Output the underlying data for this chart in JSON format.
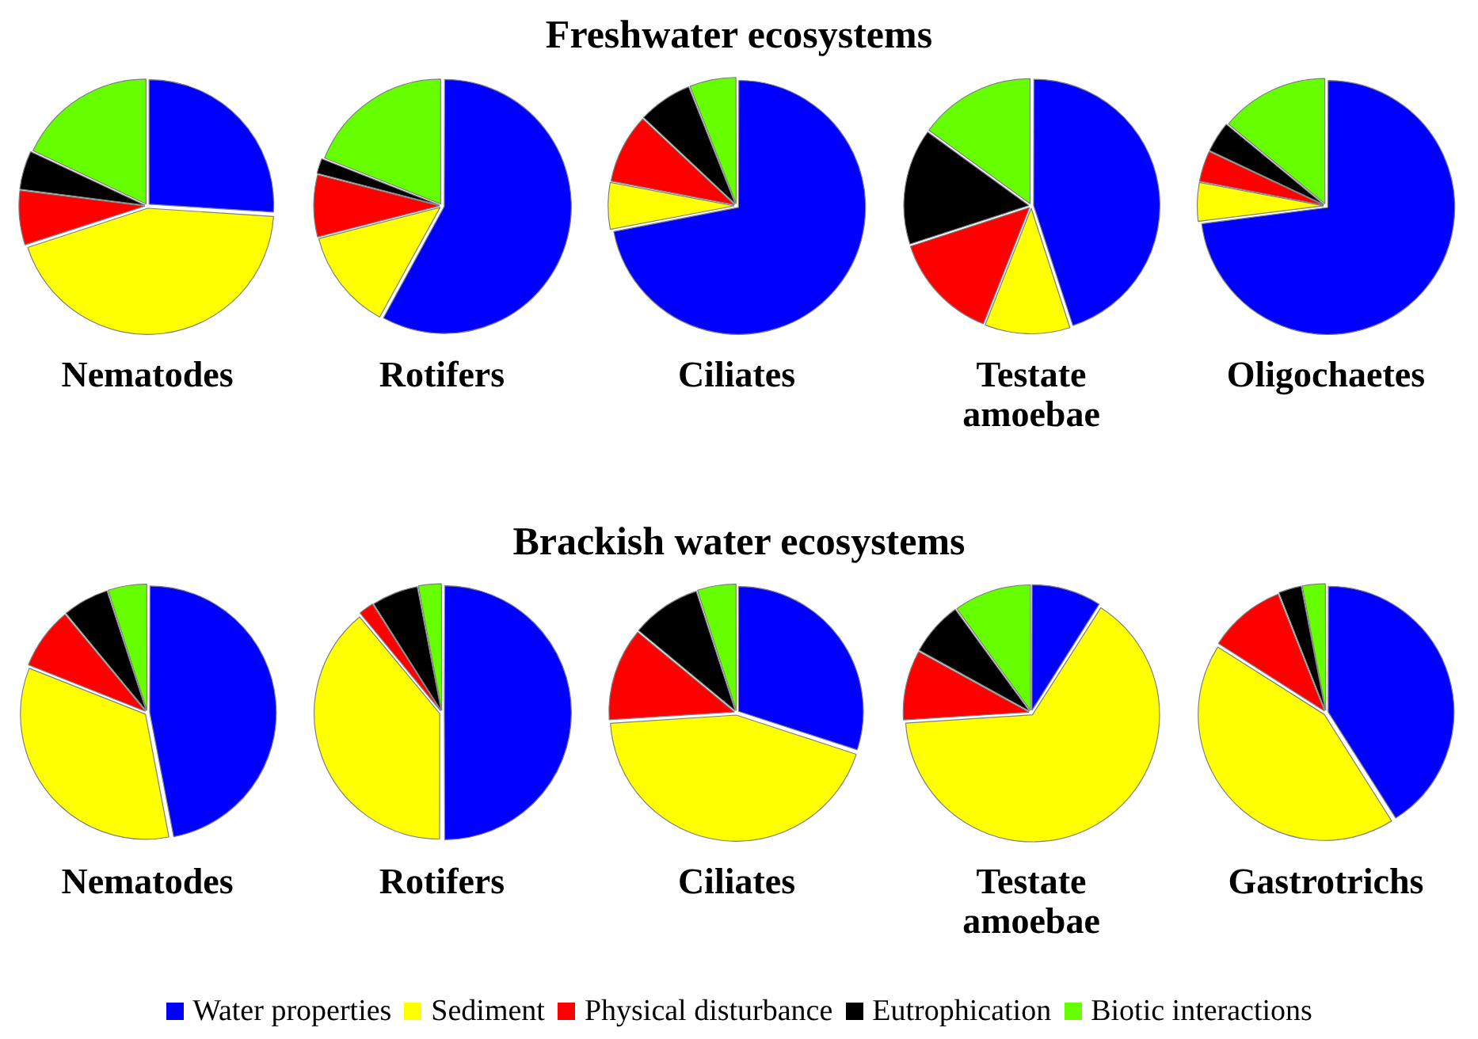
{
  "chart_data": [
    {
      "type": "pie",
      "annotations": [
        "Freshwater ecosystems"
      ],
      "title": "Nematodes",
      "legend": "bottom",
      "categories": [
        "Water properties",
        "Sediment",
        "Physical disturbance",
        "Eutrophication",
        "Biotic interactions"
      ],
      "values": [
        26,
        44,
        7,
        5,
        18
      ],
      "colors": [
        "#0000ff",
        "#ffff00",
        "#ff0000",
        "#000000",
        "#66ff00"
      ]
    },
    {
      "type": "pie",
      "title": "Rotifers",
      "categories": [
        null,
        null,
        null,
        null,
        null
      ],
      "values": [
        58,
        13,
        8,
        2,
        19
      ],
      "colors": [
        "#0000ff",
        "#ffff00",
        "#ff0000",
        "#000000",
        "#66ff00"
      ]
    },
    {
      "type": "pie",
      "title": "Ciliates",
      "categories": [
        null,
        null,
        null,
        null,
        null
      ],
      "values": [
        72,
        6,
        9,
        7,
        6
      ],
      "colors": [
        "#0000ff",
        "#ffff00",
        "#ff0000",
        "#000000",
        "#66ff00"
      ]
    },
    {
      "type": "pie",
      "title": "Testate amoebae",
      "categories": [
        null,
        null,
        null,
        null,
        null
      ],
      "values": [
        45,
        11,
        14,
        15,
        15
      ],
      "colors": [
        "#0000ff",
        "#ffff00",
        "#ff0000",
        "#000000",
        "#66ff00"
      ]
    },
    {
      "type": "pie",
      "title": "Oligochaetes",
      "categories": [
        null,
        null,
        null,
        null,
        null
      ],
      "values": [
        73,
        5,
        4,
        4,
        14
      ],
      "colors": [
        "#0000ff",
        "#ffff00",
        "#ff0000",
        "#000000",
        "#66ff00"
      ]
    },
    {
      "type": "pie",
      "annotations": [
        "Brackish water ecosystems"
      ],
      "title": "Nematodes",
      "categories": [
        null,
        null,
        null,
        null,
        null
      ],
      "values": [
        47,
        34,
        8,
        6,
        5
      ],
      "colors": [
        "#0000ff",
        "#ffff00",
        "#ff0000",
        "#000000",
        "#66ff00"
      ]
    },
    {
      "type": "pie",
      "title": "Rotifers",
      "categories": [
        null,
        null,
        null,
        null,
        null
      ],
      "values": [
        50,
        39,
        2,
        6,
        3
      ],
      "colors": [
        "#0000ff",
        "#ffff00",
        "#ff0000",
        "#000000",
        "#66ff00"
      ]
    },
    {
      "type": "pie",
      "title": "Ciliates",
      "categories": [
        null,
        null,
        null,
        null,
        null
      ],
      "values": [
        30,
        44,
        12,
        9,
        5
      ],
      "colors": [
        "#0000ff",
        "#ffff00",
        "#ff0000",
        "#000000",
        "#66ff00"
      ]
    },
    {
      "type": "pie",
      "title": "Testate amoebae",
      "categories": [
        null,
        null,
        null,
        null,
        null
      ],
      "values": [
        9,
        65,
        9,
        7,
        10
      ],
      "colors": [
        "#0000ff",
        "#ffff00",
        "#ff0000",
        "#000000",
        "#66ff00"
      ]
    },
    {
      "type": "pie",
      "title": "Gastrotrichs",
      "categories": [
        null,
        null,
        null,
        null,
        null
      ],
      "values": [
        41,
        43,
        10,
        3,
        3
      ],
      "colors": [
        "#0000ff",
        "#ffff00",
        "#ff0000",
        "#000000",
        "#66ff00"
      ]
    }
  ]
}
